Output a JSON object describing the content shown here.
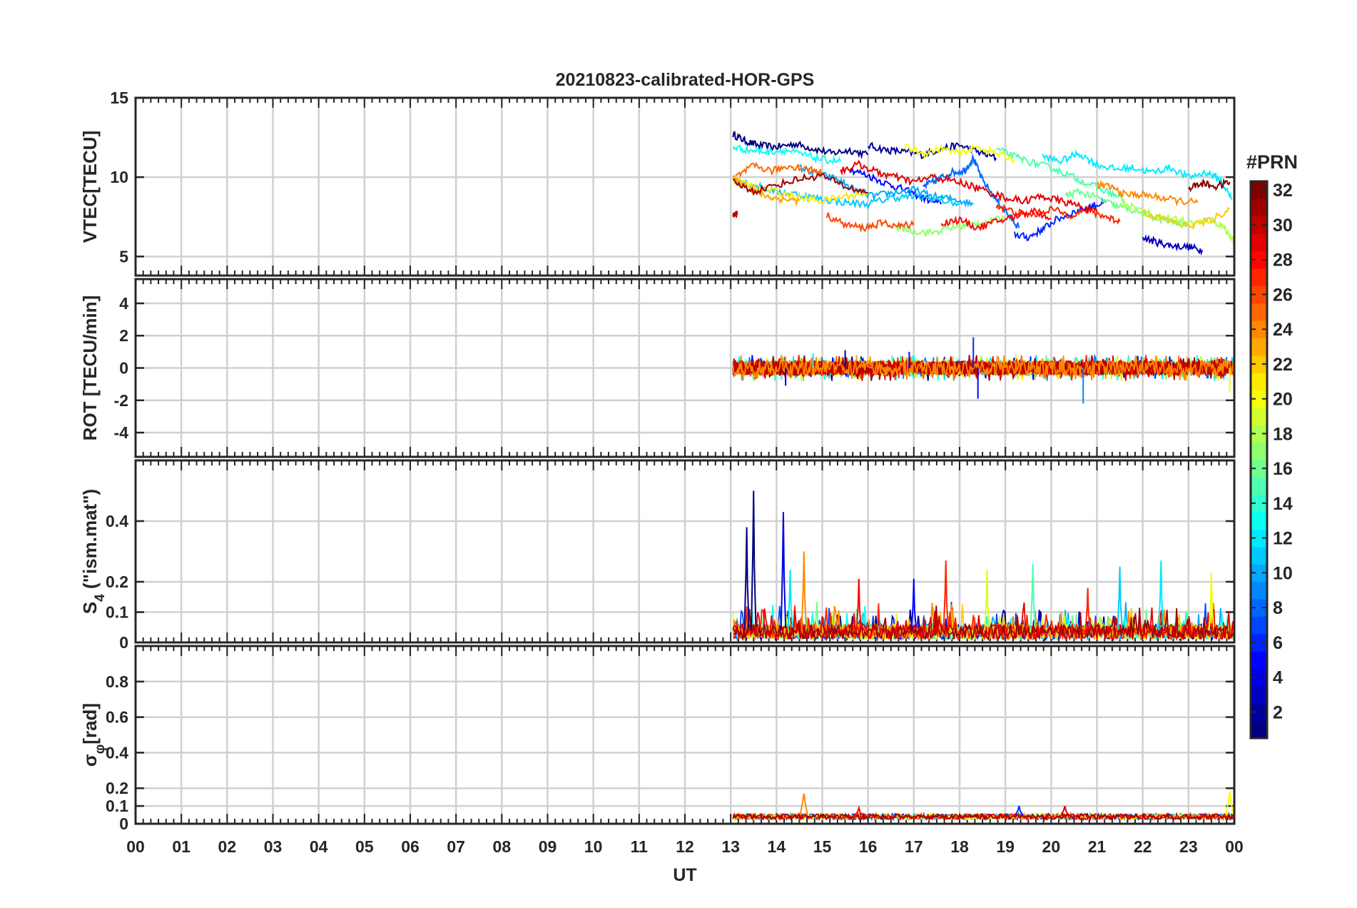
{
  "title": "20210823-calibrated-HOR-GPS",
  "colorbar": {
    "label": "#PRN",
    "range": [
      1,
      32
    ],
    "ticks": [
      2,
      4,
      6,
      8,
      10,
      12,
      14,
      16,
      18,
      20,
      22,
      24,
      26,
      28,
      30,
      32
    ],
    "colormap": "jet"
  },
  "chart_data": [
    {
      "type": "line",
      "panel": "VTEC",
      "ylabel": "VTEC[TECU]",
      "ylim": [
        3.8,
        15
      ],
      "yticks": [
        5,
        10,
        15
      ],
      "xlim": [
        0,
        24
      ],
      "grid": true,
      "series": [
        {
          "prn": 1,
          "x": [
            13.05,
            13.3,
            13.6,
            14.0,
            14.4,
            14.8,
            15.2,
            15.6,
            16.0
          ],
          "y": [
            12.7,
            12.3,
            12.0,
            11.9,
            12.1,
            11.8,
            11.5,
            11.7,
            11.4
          ]
        },
        {
          "prn": 2,
          "x": [
            16.0,
            16.4,
            16.8,
            17.2,
            17.6,
            18.0,
            18.4,
            18.8
          ],
          "y": [
            12.0,
            11.7,
            11.6,
            11.4,
            11.8,
            12.0,
            11.6,
            11.2
          ]
        },
        {
          "prn": 3,
          "x": [
            22.0,
            22.3,
            22.6,
            23.0,
            23.3
          ],
          "y": [
            6.2,
            5.9,
            5.7,
            5.6,
            5.4
          ]
        },
        {
          "prn": 5,
          "x": [
            15.6,
            16.0,
            16.4,
            16.8,
            17.2,
            17.6
          ],
          "y": [
            10.5,
            10.1,
            9.6,
            9.2,
            8.7,
            8.3
          ]
        },
        {
          "prn": 6,
          "x": [
            19.2,
            19.5,
            19.8,
            20.1,
            20.5,
            20.9,
            21.2
          ],
          "y": [
            6.4,
            6.2,
            6.7,
            7.3,
            7.8,
            8.2,
            8.4
          ]
        },
        {
          "prn": 8,
          "x": [
            17.2,
            17.5,
            17.8,
            18.1,
            18.3,
            18.5,
            18.8,
            19.1,
            19.3
          ],
          "y": [
            9.4,
            9.8,
            10.3,
            10.4,
            11.2,
            9.8,
            8.6,
            7.5,
            6.8
          ]
        },
        {
          "prn": 10,
          "x": [
            14.5,
            14.9,
            15.3,
            15.7,
            16.1,
            16.5,
            17.0,
            17.4,
            17.9,
            18.3
          ],
          "y": [
            10.6,
            10.2,
            9.9,
            9.2,
            8.8,
            9.0,
            9.2,
            8.8,
            8.6,
            8.3
          ]
        },
        {
          "prn": 11,
          "x": [
            13.05,
            13.5,
            14.0,
            14.5,
            15.0,
            15.5,
            16.0,
            16.5,
            17.0,
            17.5,
            18.0
          ],
          "y": [
            9.9,
            9.5,
            9.1,
            8.9,
            8.6,
            8.4,
            8.3,
            8.7,
            8.8,
            8.6,
            8.3
          ]
        },
        {
          "prn": 12,
          "x": [
            19.8,
            20.2,
            20.6,
            21.0,
            21.4,
            21.8,
            22.2,
            22.6,
            23.0,
            23.4,
            23.7,
            23.95
          ],
          "y": [
            11.3,
            11.0,
            11.5,
            10.8,
            10.5,
            10.6,
            10.3,
            10.6,
            10.0,
            10.3,
            9.8,
            8.6
          ]
        },
        {
          "prn": 13,
          "x": [
            13.05,
            13.4,
            13.8,
            14.2,
            14.6,
            15.0,
            15.4
          ],
          "y": [
            11.9,
            11.7,
            11.6,
            11.7,
            11.4,
            11.1,
            11.0
          ]
        },
        {
          "prn": 15,
          "x": [
            18.8,
            19.2,
            19.6,
            20.0,
            20.4,
            20.8,
            21.2,
            21.6
          ],
          "y": [
            11.8,
            11.3,
            10.9,
            10.6,
            10.1,
            9.6,
            9.1,
            8.6
          ]
        },
        {
          "prn": 16,
          "x": [
            20.3,
            20.6,
            21.0,
            21.4,
            21.8,
            22.2,
            22.6,
            23.0
          ],
          "y": [
            8.8,
            9.1,
            8.7,
            8.2,
            7.9,
            7.5,
            7.2,
            6.9
          ]
        },
        {
          "prn": 17,
          "x": [
            16.6,
            17.0,
            17.4,
            17.8,
            18.2,
            18.6,
            19.0
          ],
          "y": [
            6.9,
            6.6,
            6.5,
            6.8,
            7.0,
            7.2,
            7.4
          ]
        },
        {
          "prn": 18,
          "x": [
            21.5,
            21.9,
            22.3,
            22.7,
            23.1,
            23.5,
            23.8,
            24.0
          ],
          "y": [
            8.5,
            8.0,
            7.5,
            7.4,
            7.1,
            7.3,
            6.8,
            5.8
          ]
        },
        {
          "prn": 20,
          "x": [
            16.8,
            17.2,
            17.6,
            18.0,
            18.4,
            18.8,
            19.2
          ],
          "y": [
            11.9,
            11.5,
            11.8,
            11.5,
            11.9,
            11.5,
            11.1
          ]
        },
        {
          "prn": 21,
          "x": [
            13.05,
            13.5,
            14.0,
            14.5,
            15.0,
            15.5,
            16.0
          ],
          "y": [
            9.8,
            9.4,
            9.1,
            8.7,
            8.5,
            8.8,
            9.0
          ]
        },
        {
          "prn": 22,
          "x": [
            22.0,
            22.5,
            23.0,
            23.5,
            23.9
          ],
          "y": [
            7.8,
            7.3,
            6.9,
            7.3,
            8.0
          ]
        },
        {
          "prn": 23,
          "x": [
            13.05,
            13.3,
            13.6,
            13.9,
            14.2,
            14.5
          ],
          "y": [
            9.9,
            9.5,
            9.0,
            8.7,
            8.6,
            8.5
          ]
        },
        {
          "prn": 24,
          "x": [
            21.0,
            21.3,
            21.6,
            22.0,
            22.4,
            22.8,
            23.2
          ],
          "y": [
            9.5,
            9.4,
            8.9,
            8.9,
            8.7,
            8.5,
            8.4
          ]
        },
        {
          "prn": 25,
          "x": [
            13.1,
            13.5,
            13.9,
            14.3,
            14.7,
            15.0
          ],
          "y": [
            10.0,
            10.7,
            10.4,
            10.7,
            10.5,
            10.3
          ]
        },
        {
          "prn": 26,
          "x": [
            15.1,
            15.5,
            15.9,
            16.3,
            16.7,
            17.0
          ],
          "y": [
            7.6,
            7.0,
            6.8,
            7.1,
            6.9,
            7.1
          ]
        },
        {
          "prn": 27,
          "x": [
            18.8,
            19.2,
            19.6,
            20.0,
            20.4,
            20.8,
            21.2,
            21.5
          ],
          "y": [
            8.2,
            7.8,
            7.6,
            8.0,
            7.6,
            7.9,
            7.5,
            7.2
          ]
        },
        {
          "prn": 28,
          "x": [
            17.6,
            18.0,
            18.4,
            18.8,
            19.2,
            19.6,
            20.0
          ],
          "y": [
            7.1,
            7.3,
            6.8,
            7.2,
            7.5,
            7.9,
            7.4
          ]
        },
        {
          "prn": 29,
          "x": [
            15.4,
            15.8,
            16.2,
            16.6,
            17.0,
            17.4,
            17.8,
            18.2,
            18.6,
            19.0,
            19.4,
            19.8,
            20.2,
            20.6,
            21.0
          ],
          "y": [
            10.4,
            10.8,
            10.3,
            10.0,
            9.7,
            10.0,
            9.8,
            9.5,
            9.1,
            8.7,
            8.5,
            8.8,
            8.5,
            8.2,
            7.8
          ]
        },
        {
          "prn": 31,
          "x": [
            13.05,
            13.5,
            14.0,
            14.5,
            15.0,
            15.5,
            16.0
          ],
          "y": [
            9.7,
            9.1,
            9.5,
            9.9,
            10.1,
            9.4,
            9.0
          ]
        },
        {
          "prn": 32,
          "x": [
            23.0,
            23.3,
            23.6,
            23.9
          ],
          "y": [
            9.3,
            9.6,
            9.4,
            9.7
          ]
        },
        {
          "prn": 30,
          "x": [
            13.05,
            13.15
          ],
          "y": [
            7.6,
            7.7
          ]
        }
      ]
    },
    {
      "type": "line",
      "panel": "ROT",
      "ylabel": "ROT [TECU/min]",
      "ylim": [
        -5.5,
        5.5
      ],
      "yticks": [
        -4,
        -2,
        0,
        2,
        4
      ],
      "xlim": [
        0,
        24
      ],
      "grid": true,
      "time_range": [
        13.05,
        24.0
      ],
      "typical_range": [
        -0.8,
        0.8
      ],
      "spikes": [
        {
          "x": 14.2,
          "y": -1.1,
          "prn": 4
        },
        {
          "x": 14.8,
          "y": 0.9,
          "prn": 12
        },
        {
          "x": 15.5,
          "y": 1.1,
          "prn": 2
        },
        {
          "x": 16.9,
          "y": 1.0,
          "prn": 5
        },
        {
          "x": 18.3,
          "y": 1.9,
          "prn": 6
        },
        {
          "x": 18.4,
          "y": -1.9,
          "prn": 5
        },
        {
          "x": 20.7,
          "y": -2.2,
          "prn": 9
        },
        {
          "x": 23.9,
          "y": -1.5,
          "prn": 20
        }
      ]
    },
    {
      "type": "line",
      "panel": "S4",
      "ylabel": "S4 (\"ism.mat\")",
      "ylabel_main": "S",
      "ylabel_sub": "4",
      "ylabel_rest": " (\"ism.mat\")",
      "ylim": [
        0,
        0.6
      ],
      "yticks": [
        0,
        0.1,
        0.2,
        0.4
      ],
      "ytick_labels": [
        "0",
        "0.1",
        "0.2",
        "0.4"
      ],
      "xlim": [
        0,
        24
      ],
      "grid": true,
      "time_range": [
        13.05,
        24.0
      ],
      "peaks": [
        {
          "x": 13.35,
          "y": 0.38,
          "prn": 1
        },
        {
          "x": 13.5,
          "y": 0.5,
          "prn": 1
        },
        {
          "x": 14.15,
          "y": 0.43,
          "prn": 4
        },
        {
          "x": 14.3,
          "y": 0.24,
          "prn": 12
        },
        {
          "x": 14.6,
          "y": 0.3,
          "prn": 24
        },
        {
          "x": 15.8,
          "y": 0.21,
          "prn": 28
        },
        {
          "x": 17.0,
          "y": 0.21,
          "prn": 5
        },
        {
          "x": 17.7,
          "y": 0.27,
          "prn": 27
        },
        {
          "x": 18.6,
          "y": 0.24,
          "prn": 19
        },
        {
          "x": 19.6,
          "y": 0.26,
          "prn": 15
        },
        {
          "x": 20.8,
          "y": 0.18,
          "prn": 27
        },
        {
          "x": 21.5,
          "y": 0.25,
          "prn": 11
        },
        {
          "x": 22.4,
          "y": 0.27,
          "prn": 12
        },
        {
          "x": 23.5,
          "y": 0.23,
          "prn": 20
        }
      ]
    },
    {
      "type": "line",
      "panel": "sigma_phi",
      "ylabel": "σφ[rad]",
      "ylabel_main": "σ",
      "ylabel_sub": "φ",
      "ylabel_rest": "[rad]",
      "ylim": [
        0,
        1
      ],
      "yticks": [
        0,
        0.1,
        0.2,
        0.4,
        0.6,
        0.8
      ],
      "ytick_labels": [
        "0",
        "0.1",
        "0.2",
        "0.4",
        "0.6",
        "0.8"
      ],
      "xlim": [
        0,
        24
      ],
      "grid": true,
      "time_range": [
        13.05,
        24.0
      ],
      "baseline": 0.04,
      "peaks": [
        {
          "x": 14.6,
          "y": 0.17,
          "prn": 24
        },
        {
          "x": 15.8,
          "y": 0.09,
          "prn": 28
        },
        {
          "x": 19.3,
          "y": 0.1,
          "prn": 6
        },
        {
          "x": 20.3,
          "y": 0.1,
          "prn": 29
        },
        {
          "x": 23.9,
          "y": 0.18,
          "prn": 20
        }
      ]
    }
  ],
  "xaxis": {
    "label": "UT",
    "tick_labels": [
      "00",
      "01",
      "02",
      "03",
      "04",
      "05",
      "06",
      "07",
      "08",
      "09",
      "10",
      "11",
      "12",
      "13",
      "14",
      "15",
      "16",
      "17",
      "18",
      "19",
      "20",
      "21",
      "22",
      "23",
      "00"
    ]
  }
}
